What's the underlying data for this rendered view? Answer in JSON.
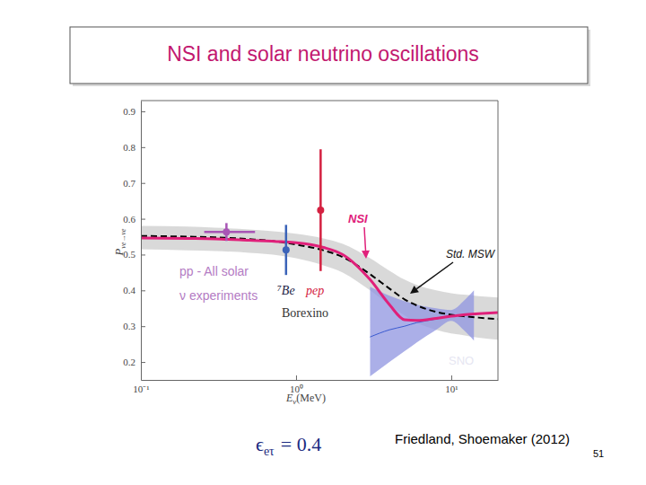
{
  "chart_data": {
    "type": "line",
    "title": "NSI and solar neutrino oscillations",
    "xlabel": {
      "base": "E",
      "sub": "ν",
      "rest": "(MeV)"
    },
    "ylabel": {
      "base": "P",
      "sub": "νe→νe"
    },
    "log": "x",
    "grid": false,
    "xlim": [
      0.1,
      20
    ],
    "ylim": [
      0.15,
      0.93
    ],
    "xticks": [
      {
        "value": 0.1,
        "label": "10⁻¹"
      },
      {
        "value": 1,
        "label": "10⁰"
      },
      {
        "value": 10,
        "label": "10¹"
      }
    ],
    "yticks": [
      0.2,
      0.3,
      0.4,
      0.5,
      0.6,
      0.7,
      0.8,
      0.9
    ],
    "series": [
      {
        "type": "band",
        "color": "#cfcfcf",
        "x": [
          0.1,
          0.2,
          0.3,
          0.5,
          0.8,
          1,
          1.5,
          2,
          3,
          4,
          5,
          6,
          8,
          10,
          12,
          15,
          20
        ],
        "upper": [
          0.58,
          0.578,
          0.575,
          0.57,
          0.563,
          0.558,
          0.545,
          0.53,
          0.49,
          0.455,
          0.43,
          0.415,
          0.4,
          0.392,
          0.388,
          0.384,
          0.38
        ],
        "lower": [
          0.515,
          0.512,
          0.51,
          0.505,
          0.497,
          0.49,
          0.47,
          0.45,
          0.4,
          0.36,
          0.33,
          0.31,
          0.29,
          0.28,
          0.275,
          0.268,
          0.262
        ]
      },
      {
        "type": "band",
        "name": "SNO",
        "color": "#8f94e0",
        "x": [
          3,
          4,
          5,
          6,
          8,
          10,
          12,
          14
        ],
        "upper": [
          0.41,
          0.385,
          0.37,
          0.36,
          0.35,
          0.345,
          0.37,
          0.4
        ],
        "lower": [
          0.16,
          0.2,
          0.23,
          0.255,
          0.29,
          0.315,
          0.29,
          0.26
        ]
      },
      {
        "type": "line",
        "color": "#3a5ad0",
        "line_style": "solid",
        "x": [
          3,
          4,
          5,
          6,
          8,
          10,
          12,
          14
        ],
        "values": [
          0.27,
          0.29,
          0.3,
          0.31,
          0.32,
          0.33,
          0.332,
          0.335
        ]
      },
      {
        "type": "line",
        "name": "Std. MSW",
        "color": "#000000",
        "line_style": "dashed",
        "x": [
          0.1,
          0.2,
          0.3,
          0.5,
          0.8,
          1,
          1.5,
          2,
          3,
          4,
          5,
          6,
          8,
          10,
          12,
          15,
          20
        ],
        "values": [
          0.552,
          0.55,
          0.548,
          0.543,
          0.535,
          0.528,
          0.512,
          0.493,
          0.445,
          0.405,
          0.375,
          0.358,
          0.34,
          0.332,
          0.328,
          0.324,
          0.32
        ]
      },
      {
        "type": "line",
        "name": "NSI",
        "color": "#e0207a",
        "line_style": "solid",
        "x": [
          0.1,
          0.2,
          0.3,
          0.5,
          0.8,
          1,
          1.5,
          2,
          3,
          4,
          5,
          6,
          8,
          10,
          12,
          15,
          20
        ],
        "values": [
          0.546,
          0.545,
          0.544,
          0.54,
          0.536,
          0.533,
          0.52,
          0.5,
          0.43,
          0.36,
          0.318,
          0.316,
          0.322,
          0.328,
          0.332,
          0.335,
          0.338
        ]
      },
      {
        "type": "scatter",
        "marker": "circle",
        "color": "#a855b5",
        "x": [
          0.356
        ],
        "values": [
          0.563
        ],
        "errors": [
          0.025
        ],
        "x_low": [
          0.256
        ],
        "x_high": [
          0.544
        ]
      },
      {
        "type": "scatter",
        "name": "⁷Be",
        "marker": "circle",
        "color": "#3b63b8",
        "x": [
          0.862
        ],
        "values": [
          0.513
        ],
        "errors": [
          0.07
        ]
      },
      {
        "type": "scatter",
        "name": "pep",
        "marker": "circle",
        "color": "#d42040",
        "x": [
          1.44
        ],
        "values": [
          0.624
        ],
        "errors": [
          0.17
        ]
      }
    ],
    "annotations": [
      "pp - All solar",
      "ν experiments",
      "Borexino"
    ]
  },
  "footer": {
    "parameter": {
      "base": "ϵ",
      "sub": "eτ",
      "rest": "= 0.4"
    },
    "citation": "Friedland, Shoemaker (2012)",
    "page": 51
  }
}
